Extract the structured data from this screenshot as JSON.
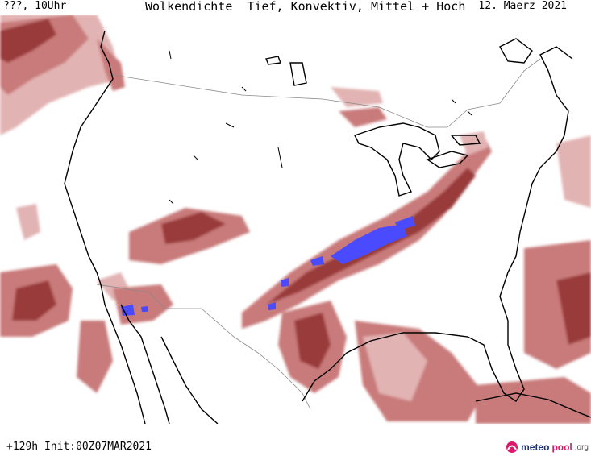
{
  "header": {
    "left": "???, 10Uhr",
    "center": "Wolkendichte  Tief, Konvektiv, Mittel + Hoch",
    "right": "12. Maerz 2021"
  },
  "footer": {
    "init": "+129h Init:00Z07MAR2021"
  },
  "brand": {
    "part1": "meteo",
    "part2": "pool",
    "part3": ".org",
    "logo_icon": "meteopool-logo-icon"
  },
  "colors": {
    "cloud_light": "#e2b3b3",
    "cloud_mid": "#c97a7a",
    "cloud_dark": "#9a3b3b",
    "convective": "#4a4aff",
    "coast": "#000000",
    "border": "#8a8a8a"
  }
}
